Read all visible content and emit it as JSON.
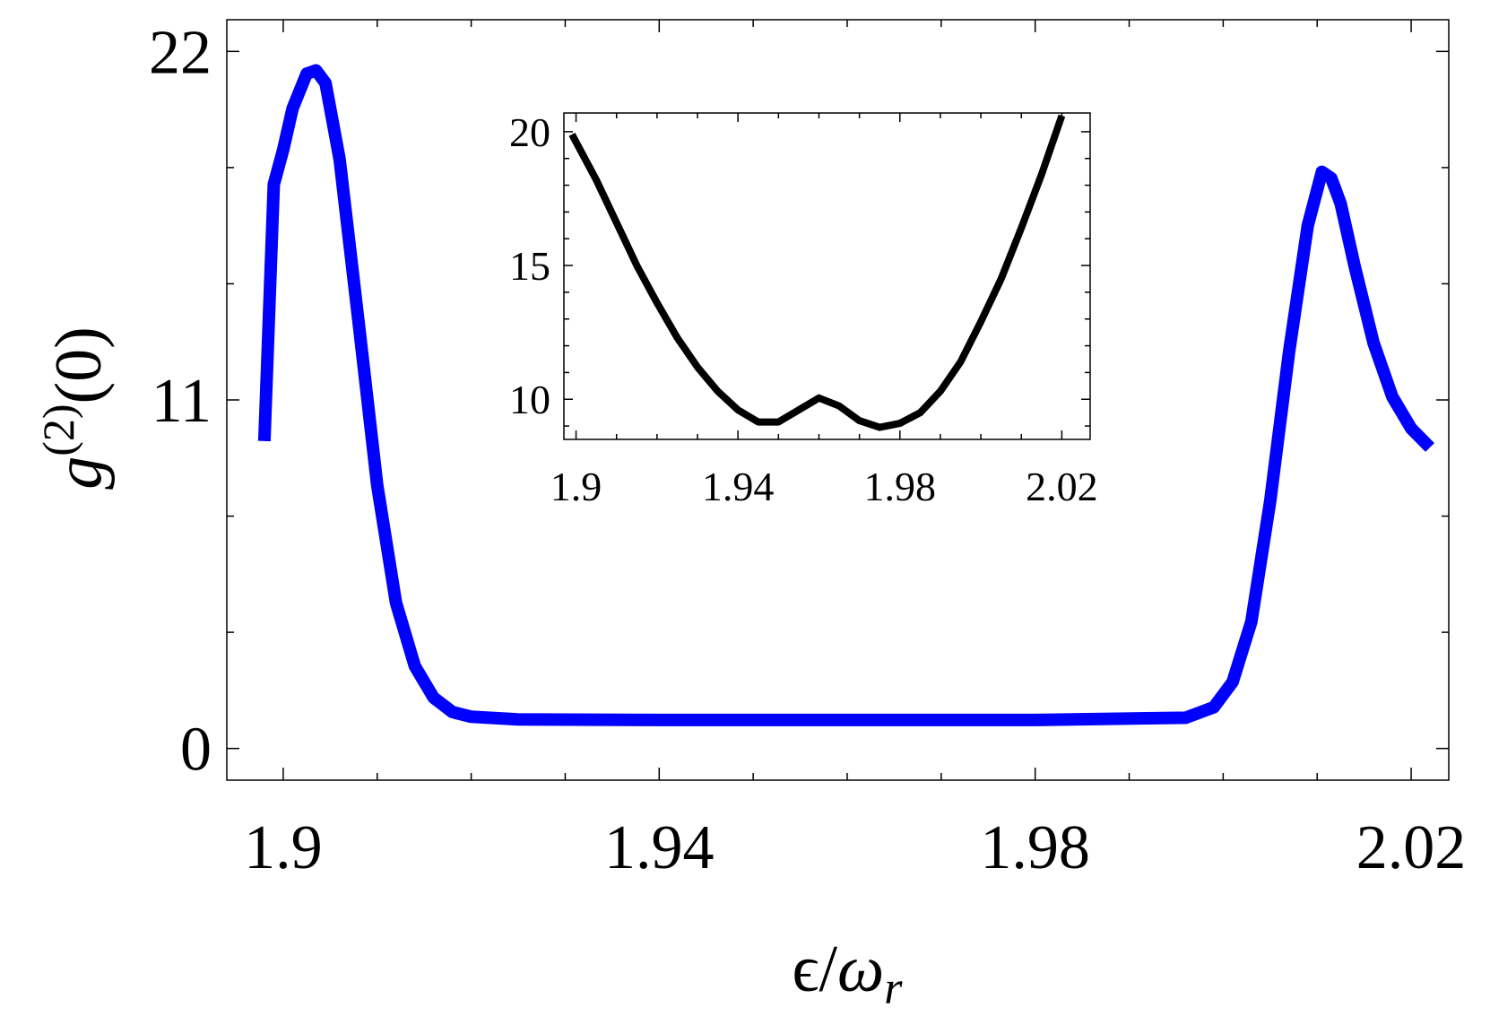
{
  "chart_data": [
    {
      "type": "line",
      "role": "main",
      "xlabel": "ϵ/ω_r",
      "ylabel": "g^(2)(0)",
      "xlim": [
        1.894,
        2.024
      ],
      "ylim": [
        -1,
        23
      ],
      "x_ticks": [
        "1.9",
        "1.94",
        "1.98",
        "2.02"
      ],
      "y_ticks": [
        "0",
        "11",
        "22"
      ],
      "line_color": "#0000ff",
      "series": [
        {
          "x": [
            1.898,
            1.899,
            1.9,
            1.901,
            1.9025,
            1.9035,
            1.9045,
            1.906,
            1.908,
            1.91,
            1.912,
            1.914,
            1.916,
            1.918,
            1.92,
            1.925,
            1.94,
            1.96,
            1.98,
            1.996,
            1.999,
            2.001,
            2.003,
            2.005,
            2.007,
            2.009,
            2.0105,
            2.0115,
            2.0125,
            2.014,
            2.016,
            2.018,
            2.02,
            2.022
          ],
          "y": [
            9.7,
            17.8,
            18.9,
            20.2,
            21.3,
            21.4,
            21.0,
            18.6,
            13.5,
            8.3,
            4.6,
            2.6,
            1.6,
            1.15,
            1.0,
            0.92,
            0.9,
            0.9,
            0.9,
            0.97,
            1.3,
            2.1,
            4.0,
            7.8,
            12.5,
            16.5,
            18.2,
            18.0,
            17.2,
            15.2,
            12.8,
            11.1,
            10.1,
            9.5
          ]
        }
      ]
    },
    {
      "type": "line",
      "role": "inset",
      "xlim": [
        1.897,
        2.027
      ],
      "ylim": [
        8.5,
        20.7
      ],
      "x_ticks": [
        "1.9",
        "1.94",
        "1.98",
        "2.02"
      ],
      "y_ticks": [
        "10",
        "15",
        "20"
      ],
      "line_color": "#000000",
      "series": [
        {
          "x": [
            1.899,
            1.905,
            1.91,
            1.915,
            1.92,
            1.925,
            1.93,
            1.935,
            1.94,
            1.945,
            1.95,
            1.955,
            1.96,
            1.965,
            1.97,
            1.975,
            1.98,
            1.985,
            1.99,
            1.995,
            2.0,
            2.005,
            2.01,
            2.015,
            2.02
          ],
          "y": [
            19.9,
            18.2,
            16.6,
            15.0,
            13.6,
            12.3,
            11.2,
            10.3,
            9.6,
            9.15,
            9.15,
            9.6,
            10.05,
            9.75,
            9.2,
            8.95,
            9.1,
            9.5,
            10.3,
            11.4,
            12.9,
            14.5,
            16.4,
            18.4,
            20.6
          ]
        }
      ]
    }
  ]
}
